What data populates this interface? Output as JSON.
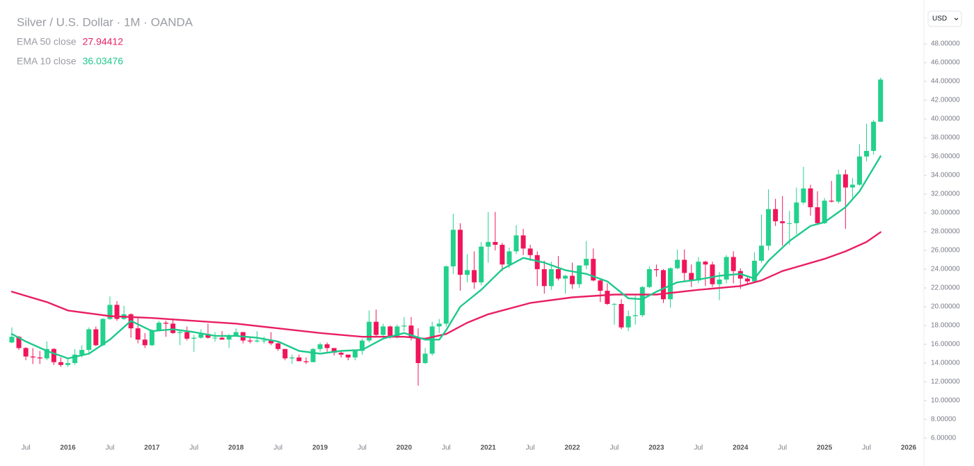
{
  "chart_data": {
    "type": "candlestick",
    "title": "Silver / U.S. Dollar · 1M · OANDA",
    "currency": "USD",
    "up_color": "#22d18b",
    "down_color": "#f0145a",
    "categories": [
      "2015-05",
      "2015-06",
      "2015-07",
      "2015-08",
      "2015-09",
      "2015-10",
      "2015-11",
      "2015-12",
      "2016-01",
      "2016-02",
      "2016-03",
      "2016-04",
      "2016-05",
      "2016-06",
      "2016-07",
      "2016-08",
      "2016-09",
      "2016-10",
      "2016-11",
      "2016-12",
      "2017-01",
      "2017-02",
      "2017-03",
      "2017-04",
      "2017-05",
      "2017-06",
      "2017-07",
      "2017-08",
      "2017-09",
      "2017-10",
      "2017-11",
      "2017-12",
      "2018-01",
      "2018-02",
      "2018-03",
      "2018-04",
      "2018-05",
      "2018-06",
      "2018-07",
      "2018-08",
      "2018-09",
      "2018-10",
      "2018-11",
      "2018-12",
      "2019-01",
      "2019-02",
      "2019-03",
      "2019-04",
      "2019-05",
      "2019-06",
      "2019-07",
      "2019-08",
      "2019-09",
      "2019-10",
      "2019-11",
      "2019-12",
      "2020-01",
      "2020-02",
      "2020-03",
      "2020-04",
      "2020-05",
      "2020-06",
      "2020-07",
      "2020-08",
      "2020-09",
      "2020-10",
      "2020-11",
      "2020-12",
      "2021-01",
      "2021-02",
      "2021-03",
      "2021-04",
      "2021-05",
      "2021-06",
      "2021-07",
      "2021-08",
      "2021-09",
      "2021-10",
      "2021-11",
      "2021-12",
      "2022-01",
      "2022-02",
      "2022-03",
      "2022-04",
      "2022-05",
      "2022-06",
      "2022-07",
      "2022-08",
      "2022-09",
      "2022-10",
      "2022-11",
      "2022-12",
      "2023-01",
      "2023-02",
      "2023-03",
      "2023-04",
      "2023-05",
      "2023-06",
      "2023-07",
      "2023-08",
      "2023-09",
      "2023-10",
      "2023-11",
      "2023-12",
      "2024-01",
      "2024-02",
      "2024-03",
      "2024-04",
      "2024-05",
      "2024-06",
      "2024-07",
      "2024-08",
      "2024-09",
      "2024-10",
      "2024-11",
      "2024-12",
      "2025-01",
      "2025-02",
      "2025-03",
      "2025-04",
      "2025-05",
      "2025-06",
      "2025-07",
      "2025-08",
      "2025-09"
    ],
    "candles": [
      [
        16.2,
        17.8,
        16.1,
        16.8
      ],
      [
        16.8,
        16.9,
        15.4,
        15.6
      ],
      [
        15.6,
        15.7,
        14.3,
        14.7
      ],
      [
        14.7,
        15.6,
        13.9,
        14.6
      ],
      [
        14.6,
        15.3,
        13.9,
        14.5
      ],
      [
        14.5,
        16.3,
        14.3,
        15.5
      ],
      [
        15.5,
        15.6,
        13.8,
        14.1
      ],
      [
        14.1,
        14.6,
        13.6,
        13.8
      ],
      [
        13.8,
        14.6,
        13.6,
        14.0
      ],
      [
        14.0,
        15.5,
        13.8,
        14.9
      ],
      [
        14.9,
        15.9,
        14.6,
        15.4
      ],
      [
        15.4,
        17.8,
        14.9,
        17.6
      ],
      [
        17.6,
        17.9,
        15.8,
        15.9
      ],
      [
        15.9,
        18.8,
        15.8,
        18.7
      ],
      [
        18.7,
        21.1,
        18.6,
        20.2
      ],
      [
        20.2,
        20.6,
        18.5,
        18.7
      ],
      [
        18.7,
        20.1,
        18.6,
        19.2
      ],
      [
        19.2,
        19.3,
        16.7,
        17.7
      ],
      [
        17.7,
        18.8,
        16.1,
        16.5
      ],
      [
        16.5,
        17.2,
        15.6,
        15.9
      ],
      [
        15.9,
        17.6,
        15.8,
        17.5
      ],
      [
        17.5,
        18.5,
        17.4,
        18.3
      ],
      [
        18.3,
        18.5,
        16.8,
        18.2
      ],
      [
        18.2,
        18.6,
        17.1,
        17.2
      ],
      [
        17.2,
        17.6,
        15.9,
        17.3
      ],
      [
        17.3,
        17.9,
        16.4,
        16.6
      ],
      [
        16.6,
        17.0,
        15.2,
        16.7
      ],
      [
        16.7,
        17.6,
        16.6,
        17.1
      ],
      [
        17.1,
        18.2,
        16.6,
        16.7
      ],
      [
        16.7,
        17.3,
        16.3,
        16.7
      ],
      [
        16.7,
        17.4,
        16.6,
        16.5
      ],
      [
        16.5,
        17.1,
        15.6,
        16.9
      ],
      [
        16.9,
        17.7,
        16.9,
        17.3
      ],
      [
        17.3,
        17.3,
        16.1,
        16.4
      ],
      [
        16.4,
        16.8,
        16.1,
        16.3
      ],
      [
        16.3,
        17.4,
        16.2,
        16.4
      ],
      [
        16.4,
        16.8,
        16.1,
        16.4
      ],
      [
        16.4,
        17.3,
        15.9,
        16.1
      ],
      [
        16.1,
        16.2,
        15.3,
        15.5
      ],
      [
        15.5,
        15.5,
        14.3,
        14.5
      ],
      [
        14.5,
        14.9,
        13.9,
        14.6
      ],
      [
        14.6,
        14.9,
        14.2,
        14.2
      ],
      [
        14.2,
        14.6,
        13.9,
        14.1
      ],
      [
        14.1,
        15.6,
        14.1,
        15.5
      ],
      [
        15.5,
        16.2,
        15.2,
        16.0
      ],
      [
        16.0,
        16.2,
        15.2,
        15.6
      ],
      [
        15.6,
        15.6,
        14.8,
        15.1
      ],
      [
        15.1,
        15.3,
        14.6,
        14.9
      ],
      [
        14.9,
        14.9,
        14.3,
        14.6
      ],
      [
        14.6,
        15.4,
        14.3,
        15.3
      ],
      [
        15.3,
        16.6,
        14.9,
        16.4
      ],
      [
        16.4,
        19.6,
        16.2,
        18.4
      ],
      [
        18.4,
        19.7,
        16.9,
        17.0
      ],
      [
        17.0,
        18.2,
        16.9,
        17.9
      ],
      [
        17.9,
        18.0,
        16.6,
        16.9
      ],
      [
        16.9,
        18.1,
        16.6,
        17.9
      ],
      [
        17.9,
        18.9,
        17.4,
        18.0
      ],
      [
        18.0,
        18.9,
        16.4,
        16.7
      ],
      [
        16.7,
        17.7,
        11.6,
        14.0
      ],
      [
        14.0,
        15.6,
        13.9,
        15.0
      ],
      [
        15.0,
        18.4,
        14.8,
        17.9
      ],
      [
        17.9,
        18.7,
        17.2,
        18.2
      ],
      [
        18.2,
        24.4,
        17.9,
        24.3
      ],
      [
        24.3,
        29.9,
        23.5,
        28.2
      ],
      [
        28.2,
        28.9,
        21.7,
        23.4
      ],
      [
        23.4,
        25.6,
        22.6,
        23.9
      ],
      [
        23.9,
        25.9,
        21.9,
        22.6
      ],
      [
        22.6,
        26.9,
        22.3,
        26.4
      ],
      [
        26.4,
        30.1,
        24.7,
        26.9
      ],
      [
        26.9,
        30.1,
        26.0,
        26.6
      ],
      [
        26.6,
        26.8,
        23.8,
        24.5
      ],
      [
        24.5,
        26.3,
        24.1,
        25.9
      ],
      [
        25.9,
        28.7,
        25.6,
        27.6
      ],
      [
        27.6,
        28.3,
        25.5,
        26.2
      ],
      [
        26.2,
        26.6,
        24.9,
        25.5
      ],
      [
        25.5,
        25.9,
        22.2,
        24.0
      ],
      [
        24.0,
        24.9,
        21.4,
        22.2
      ],
      [
        22.2,
        24.8,
        21.8,
        24.0
      ],
      [
        24.0,
        25.4,
        22.8,
        23.0
      ],
      [
        23.0,
        23.4,
        21.4,
        23.3
      ],
      [
        23.3,
        24.7,
        21.9,
        22.4
      ],
      [
        22.4,
        24.4,
        22.0,
        24.4
      ],
      [
        24.4,
        27.0,
        24.0,
        25.1
      ],
      [
        25.1,
        26.2,
        22.7,
        22.8
      ],
      [
        22.8,
        22.9,
        20.5,
        21.7
      ],
      [
        21.7,
        22.5,
        20.2,
        20.3
      ],
      [
        20.3,
        20.4,
        18.1,
        20.3
      ],
      [
        20.3,
        20.8,
        17.6,
        17.8
      ],
      [
        17.8,
        19.6,
        17.4,
        19.0
      ],
      [
        19.0,
        21.2,
        18.1,
        19.1
      ],
      [
        19.1,
        22.2,
        18.9,
        22.1
      ],
      [
        22.1,
        24.3,
        22.0,
        24.0
      ],
      [
        24.0,
        24.5,
        23.2,
        23.9
      ],
      [
        23.9,
        24.0,
        20.4,
        20.8
      ],
      [
        20.8,
        24.2,
        19.9,
        24.1
      ],
      [
        24.1,
        26.1,
        24.0,
        25.0
      ],
      [
        25.0,
        26.1,
        22.7,
        23.6
      ],
      [
        23.6,
        24.5,
        22.1,
        22.8
      ],
      [
        22.8,
        25.3,
        22.5,
        24.8
      ],
      [
        24.8,
        24.9,
        22.2,
        24.5
      ],
      [
        24.5,
        24.8,
        22.1,
        22.4
      ],
      [
        22.4,
        23.7,
        20.7,
        22.9
      ],
      [
        22.9,
        25.5,
        22.5,
        25.3
      ],
      [
        25.3,
        25.9,
        22.5,
        23.8
      ],
      [
        23.8,
        24.1,
        21.9,
        23.0
      ],
      [
        23.0,
        23.3,
        22.3,
        22.7
      ],
      [
        22.7,
        25.8,
        22.6,
        24.9
      ],
      [
        24.9,
        29.8,
        24.7,
        26.5
      ],
      [
        26.5,
        32.5,
        26.0,
        30.4
      ],
      [
        30.4,
        31.5,
        28.6,
        29.1
      ],
      [
        29.1,
        31.8,
        26.5,
        28.9
      ],
      [
        28.9,
        30.2,
        26.6,
        28.9
      ],
      [
        28.9,
        32.7,
        27.7,
        31.1
      ],
      [
        31.1,
        34.9,
        30.9,
        32.6
      ],
      [
        32.6,
        33.0,
        29.7,
        30.6
      ],
      [
        30.6,
        32.3,
        28.7,
        28.9
      ],
      [
        28.9,
        31.6,
        28.8,
        31.3
      ],
      [
        31.3,
        33.4,
        31.1,
        31.2
      ],
      [
        31.2,
        34.6,
        31.0,
        34.1
      ],
      [
        34.1,
        34.6,
        28.3,
        32.7
      ],
      [
        32.7,
        33.7,
        31.6,
        33.0
      ],
      [
        33.0,
        37.3,
        32.9,
        36.0
      ],
      [
        36.0,
        39.5,
        35.5,
        36.6
      ],
      [
        36.6,
        39.9,
        36.2,
        39.7
      ],
      [
        39.7,
        44.4,
        39.7,
        44.2
      ]
    ],
    "series": [
      {
        "name": "EMA 50 close",
        "color": "#e91e63",
        "x": [
          "2015-05",
          "2015-10",
          "2016-01",
          "2016-07",
          "2017-01",
          "2017-07",
          "2018-01",
          "2018-07",
          "2019-01",
          "2019-07",
          "2020-01",
          "2020-04",
          "2020-07",
          "2020-10",
          "2021-01",
          "2021-07",
          "2022-01",
          "2022-07",
          "2023-01",
          "2023-07",
          "2024-01",
          "2024-04",
          "2024-07",
          "2025-01",
          "2025-04",
          "2025-07",
          "2025-09"
        ],
        "values": [
          21.6,
          20.5,
          19.6,
          19.0,
          18.8,
          18.5,
          18.2,
          17.7,
          17.2,
          16.8,
          16.8,
          16.6,
          17.1,
          18.3,
          19.2,
          20.4,
          21.0,
          21.3,
          21.3,
          21.8,
          22.2,
          22.8,
          23.8,
          25.1,
          25.9,
          26.9,
          27.94412
        ]
      },
      {
        "name": "EMA 10 close",
        "color": "#1dc98c",
        "x": [
          "2015-05",
          "2015-07",
          "2015-10",
          "2016-01",
          "2016-04",
          "2016-07",
          "2016-10",
          "2017-01",
          "2017-04",
          "2017-07",
          "2017-10",
          "2018-01",
          "2018-04",
          "2018-07",
          "2018-10",
          "2019-01",
          "2019-04",
          "2019-07",
          "2019-10",
          "2020-01",
          "2020-04",
          "2020-06",
          "2020-07",
          "2020-09",
          "2020-12",
          "2021-03",
          "2021-06",
          "2021-09",
          "2021-12",
          "2022-03",
          "2022-06",
          "2022-09",
          "2022-11",
          "2023-01",
          "2023-04",
          "2023-07",
          "2023-10",
          "2024-01",
          "2024-03",
          "2024-05",
          "2024-08",
          "2024-11",
          "2025-01",
          "2025-04",
          "2025-06",
          "2025-09"
        ],
        "values": [
          17.1,
          16.3,
          15.3,
          14.5,
          15.0,
          16.5,
          18.5,
          17.4,
          17.6,
          17.3,
          16.9,
          16.9,
          16.7,
          16.3,
          15.3,
          15.0,
          15.3,
          15.4,
          16.6,
          17.2,
          16.5,
          16.5,
          17.5,
          20.0,
          21.8,
          24.0,
          25.2,
          24.7,
          23.9,
          23.5,
          22.7,
          20.9,
          20.8,
          21.6,
          22.6,
          22.9,
          23.3,
          23.5,
          23.0,
          24.9,
          27.0,
          28.6,
          29.0,
          30.6,
          32.3,
          36.03476
        ]
      }
    ],
    "ylim": [
      4.89,
      51.93
    ],
    "yticks": [
      {
        "value": 6,
        "label": "6.00000"
      },
      {
        "value": 8,
        "label": "8.00000"
      },
      {
        "value": 10,
        "label": "10.00000"
      },
      {
        "value": 12,
        "label": "12.00000"
      },
      {
        "value": 14,
        "label": "14.00000"
      },
      {
        "value": 16,
        "label": "16.00000"
      },
      {
        "value": 18,
        "label": "18.00000"
      },
      {
        "value": 20,
        "label": "20.00000"
      },
      {
        "value": 22,
        "label": "22.00000"
      },
      {
        "value": 24,
        "label": "24.00000"
      },
      {
        "value": 26,
        "label": "26.00000"
      },
      {
        "value": 28,
        "label": "28.00000"
      },
      {
        "value": 30,
        "label": "30.00000"
      },
      {
        "value": 32,
        "label": "32.00000"
      },
      {
        "value": 34,
        "label": "34.00000"
      },
      {
        "value": 36,
        "label": "36.00000"
      },
      {
        "value": 38,
        "label": "38.00000"
      },
      {
        "value": 40,
        "label": "40.00000"
      },
      {
        "value": 42,
        "label": "42.00000"
      },
      {
        "value": 44,
        "label": "44.00000"
      },
      {
        "value": 46,
        "label": "46.00000"
      },
      {
        "value": 48,
        "label": "48.00000"
      }
    ],
    "xticks": [
      {
        "value": "2015-07",
        "label": "Jul"
      },
      {
        "value": "2016-01",
        "label": "2016"
      },
      {
        "value": "2016-07",
        "label": "Jul"
      },
      {
        "value": "2017-01",
        "label": "2017"
      },
      {
        "value": "2017-07",
        "label": "Jul"
      },
      {
        "value": "2018-01",
        "label": "2018"
      },
      {
        "value": "2018-07",
        "label": "Jul"
      },
      {
        "value": "2019-01",
        "label": "2019"
      },
      {
        "value": "2019-07",
        "label": "Jul"
      },
      {
        "value": "2020-01",
        "label": "2020"
      },
      {
        "value": "2020-07",
        "label": "Jul"
      },
      {
        "value": "2021-01",
        "label": "2021"
      },
      {
        "value": "2021-07",
        "label": "Jul"
      },
      {
        "value": "2022-01",
        "label": "2022"
      },
      {
        "value": "2022-07",
        "label": "Jul"
      },
      {
        "value": "2023-01",
        "label": "2023"
      },
      {
        "value": "2023-07",
        "label": "Jul"
      },
      {
        "value": "2024-01",
        "label": "2024"
      },
      {
        "value": "2024-07",
        "label": "Jul"
      },
      {
        "value": "2025-01",
        "label": "2025"
      },
      {
        "value": "2025-07",
        "label": "Jul"
      },
      {
        "value": "2026-01",
        "label": "2026"
      }
    ]
  }
}
